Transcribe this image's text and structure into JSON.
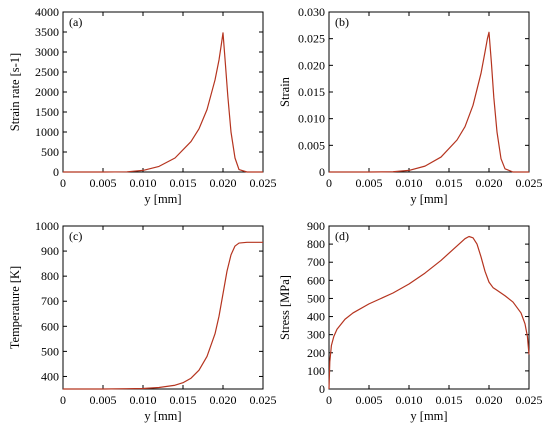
{
  "chart_data": [
    {
      "type": "line",
      "panel_label": "(a)",
      "xlabel": "y [mm]",
      "ylabel": "Strain rate [s-1]",
      "xlim": [
        0,
        0.025
      ],
      "ylim": [
        0,
        4000
      ],
      "xticks": [
        "0",
        "0.005",
        "0.010",
        "0.015",
        "0.020",
        "0.025"
      ],
      "yticks": [
        "0",
        "500",
        "1000",
        "1500",
        "2000",
        "2500",
        "3000",
        "3500",
        "4000"
      ],
      "line_color": "#b5341f",
      "x": [
        0,
        0.005,
        0.008,
        0.01,
        0.012,
        0.014,
        0.016,
        0.017,
        0.018,
        0.019,
        0.0195,
        0.0198,
        0.02,
        0.0203,
        0.0206,
        0.021,
        0.0215,
        0.022,
        0.023,
        0.025
      ],
      "y": [
        0,
        0,
        5,
        40,
        140,
        350,
        760,
        1080,
        1560,
        2300,
        2800,
        3200,
        3480,
        2700,
        1900,
        1000,
        350,
        60,
        0,
        0
      ]
    },
    {
      "type": "line",
      "panel_label": "(b)",
      "xlabel": "y [mm]",
      "ylabel": "Strain",
      "xlim": [
        0,
        0.025
      ],
      "ylim": [
        0,
        0.03
      ],
      "xticks": [
        "0",
        "0.005",
        "0.010",
        "0.015",
        "0.020",
        "0.025"
      ],
      "yticks": [
        "0",
        "0.005",
        "0.010",
        "0.015",
        "0.020",
        "0.025",
        "0.030"
      ],
      "line_color": "#b5341f",
      "x": [
        0,
        0.005,
        0.008,
        0.01,
        0.012,
        0.014,
        0.016,
        0.017,
        0.018,
        0.019,
        0.0195,
        0.0198,
        0.02,
        0.0203,
        0.0206,
        0.021,
        0.0215,
        0.022,
        0.023,
        0.025
      ],
      "y": [
        0,
        0,
        5e-05,
        0.0003,
        0.0011,
        0.0028,
        0.006,
        0.0085,
        0.0125,
        0.0185,
        0.0225,
        0.025,
        0.0262,
        0.0205,
        0.014,
        0.0075,
        0.0025,
        0.0006,
        0,
        0
      ]
    },
    {
      "type": "line",
      "panel_label": "(c)",
      "xlabel": "y [mm]",
      "ylabel": "Temperature [K]",
      "xlim": [
        0,
        0.025
      ],
      "ylim": [
        350,
        1000
      ],
      "xticks": [
        "0",
        "0.005",
        "0.010",
        "0.015",
        "0.020",
        "0.025"
      ],
      "yticks": [
        "400",
        "500",
        "600",
        "700",
        "800",
        "900",
        "1000"
      ],
      "line_color": "#b5341f",
      "x": [
        0,
        0.005,
        0.01,
        0.012,
        0.014,
        0.015,
        0.016,
        0.017,
        0.018,
        0.019,
        0.0195,
        0.02,
        0.0205,
        0.021,
        0.0215,
        0.022,
        0.023,
        0.025
      ],
      "y": [
        350,
        350,
        352,
        356,
        365,
        375,
        393,
        425,
        480,
        570,
        640,
        730,
        820,
        885,
        920,
        932,
        935,
        935
      ]
    },
    {
      "type": "line",
      "panel_label": "(d)",
      "xlabel": "y [mm]",
      "ylabel": "Stress [MPa]",
      "xlim": [
        0,
        0.025
      ],
      "ylim": [
        0,
        900
      ],
      "xticks": [
        "0",
        "0.005",
        "0.010",
        "0.015",
        "0.020",
        "0.025"
      ],
      "yticks": [
        "0",
        "100",
        "200",
        "300",
        "400",
        "500",
        "600",
        "700",
        "800",
        "900"
      ],
      "line_color": "#b5341f",
      "x": [
        0,
        0.0001,
        0.0003,
        0.0006,
        0.001,
        0.002,
        0.003,
        0.005,
        0.008,
        0.01,
        0.012,
        0.014,
        0.016,
        0.017,
        0.0175,
        0.018,
        0.0185,
        0.019,
        0.0195,
        0.02,
        0.0205,
        0.021,
        0.022,
        0.023,
        0.024,
        0.0245,
        0.0248,
        0.025
      ],
      "y": [
        0,
        150,
        240,
        290,
        330,
        385,
        420,
        470,
        530,
        580,
        640,
        710,
        790,
        830,
        842,
        835,
        800,
        730,
        650,
        590,
        560,
        545,
        515,
        480,
        420,
        360,
        290,
        190
      ]
    }
  ]
}
